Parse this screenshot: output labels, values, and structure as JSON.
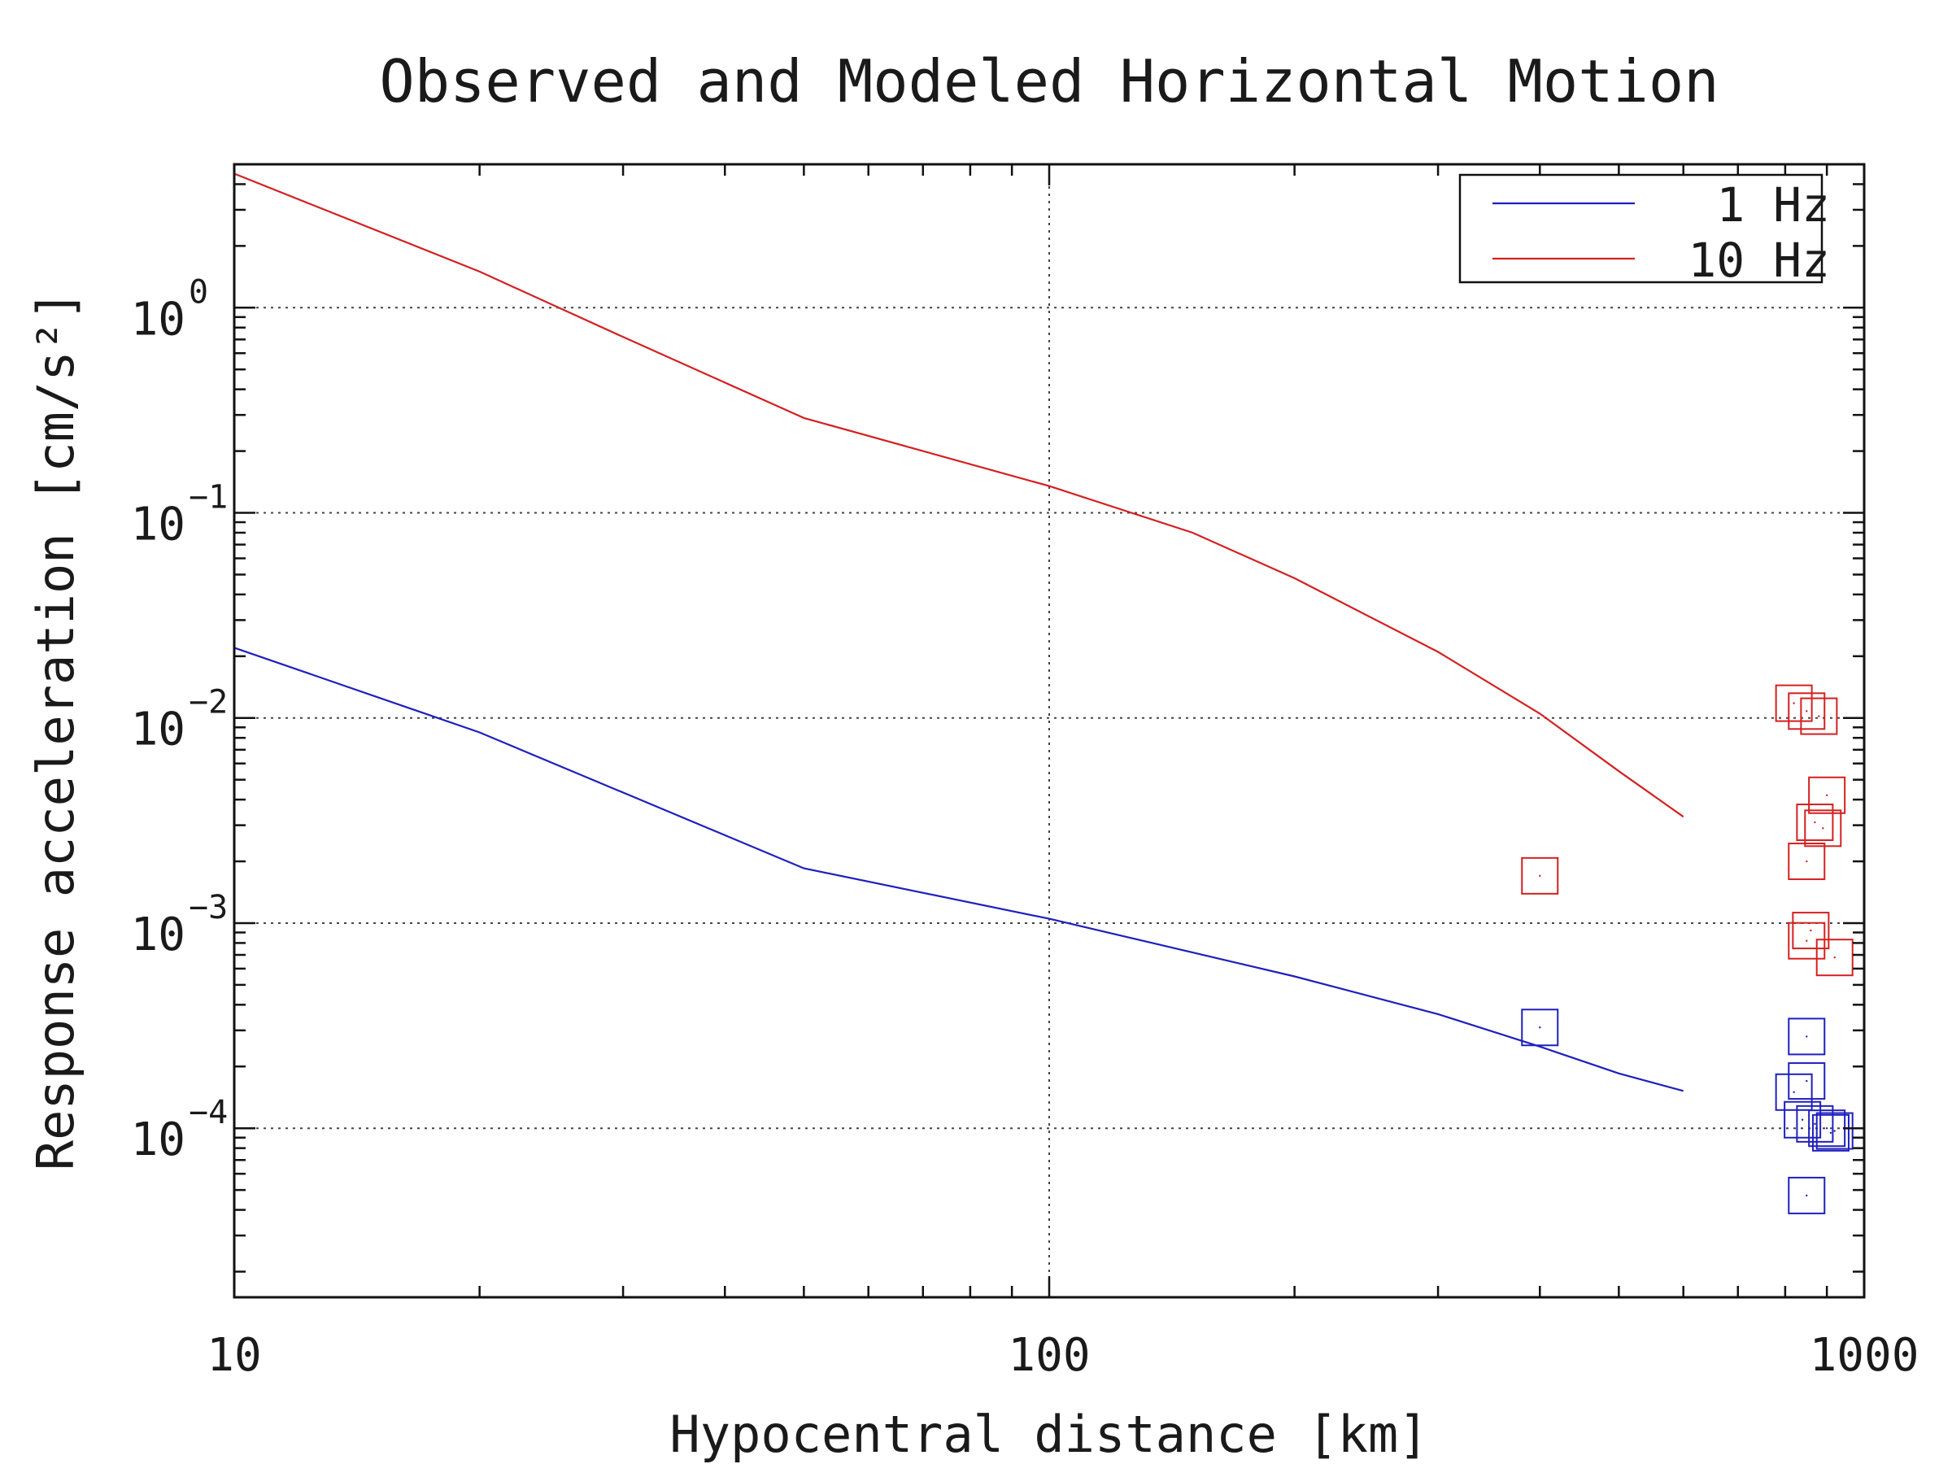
{
  "chart_data": {
    "type": "line",
    "title": "Observed and Modeled Horizontal Motion",
    "xlabel": "Hypocentral distance [km]",
    "ylabel": "Response acceleration [cm/s²]",
    "x_scale": "log",
    "y_scale": "log",
    "xlim": [
      10,
      1000
    ],
    "ylim": [
      1.5e-05,
      5
    ],
    "grid": true,
    "legend_position": "top-right",
    "x_ticks": [
      {
        "value": 10,
        "label": "10"
      },
      {
        "value": 100,
        "label": "100"
      },
      {
        "value": 1000,
        "label": "1000"
      }
    ],
    "y_ticks": [
      {
        "value": 1,
        "base": "10",
        "exp": "0"
      },
      {
        "value": 0.1,
        "base": "10",
        "exp": "−1"
      },
      {
        "value": 0.01,
        "base": "10",
        "exp": "−2"
      },
      {
        "value": 0.001,
        "base": "10",
        "exp": "−3"
      },
      {
        "value": 0.0001,
        "base": "10",
        "exp": "−4"
      }
    ],
    "series": [
      {
        "name": "1 Hz",
        "color": "#1f1fbf",
        "style": "line",
        "x": [
          10,
          20,
          50,
          100,
          200,
          300,
          400,
          500,
          600
        ],
        "y": [
          0.022,
          0.0085,
          0.00185,
          0.00105,
          0.00055,
          0.00036,
          0.00025,
          0.000185,
          0.000152
        ]
      },
      {
        "name": "10 Hz",
        "color": "#d42020",
        "style": "line",
        "x": [
          10,
          20,
          30,
          50,
          70,
          100,
          150,
          200,
          300,
          400,
          500,
          600
        ],
        "y": [
          4.5,
          1.5,
          0.72,
          0.29,
          0.2,
          0.135,
          0.08,
          0.048,
          0.021,
          0.0105,
          0.0055,
          0.0033
        ]
      }
    ],
    "observed_points": [
      {
        "frequency": "10 Hz",
        "color": "#d42020",
        "x": [
          400,
          820,
          850,
          880,
          850,
          900,
          870,
          860,
          850,
          920,
          890
        ],
        "y": [
          0.0017,
          0.0118,
          0.0108,
          0.0102,
          0.002,
          0.0042,
          0.0031,
          0.00092,
          0.00082,
          0.00068,
          0.0029
        ]
      },
      {
        "frequency": "1 Hz",
        "color": "#1f1fbf",
        "x": [
          400,
          850,
          850,
          820,
          840,
          870,
          900,
          910,
          920,
          850
        ],
        "y": [
          0.00031,
          0.00028,
          0.00017,
          0.00015,
          0.00011,
          0.000105,
          0.0001,
          9.5e-05,
          9.7e-05,
          4.7e-05
        ]
      }
    ]
  }
}
